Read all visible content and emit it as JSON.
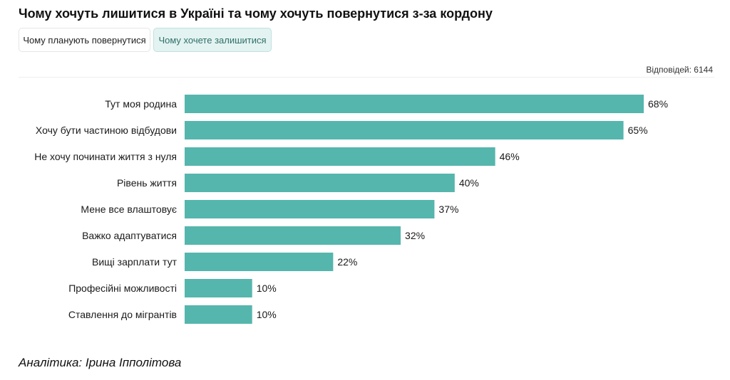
{
  "header": {
    "title": "Чому хочуть лишитися в Україні та чому хочуть повернутися з-за кордону"
  },
  "tabs": [
    {
      "label": "Чому планують повернутися",
      "active": false
    },
    {
      "label": "Чому хочете залишитися",
      "active": true
    }
  ],
  "responses": {
    "label": "Відповідей:",
    "count": "6144"
  },
  "footer": {
    "author": "Аналітика: Ірина Іпполітова"
  },
  "colors": {
    "bar": "#55b6ad",
    "active_tab_bg": "#e3f3f1"
  },
  "chart_data": {
    "type": "bar",
    "orientation": "horizontal",
    "categories": [
      "Тут моя родина",
      "Хочу бути частиною відбудови",
      "Не хочу починати життя з нуля",
      "Рівень життя",
      "Мене все влаштовує",
      "Важко адаптуватися",
      "Вищі зарплати тут",
      "Професійні можливості",
      "Ставлення до мігрантів"
    ],
    "values": [
      68,
      65,
      46,
      40,
      37,
      32,
      22,
      10,
      10
    ],
    "value_labels": [
      "68%",
      "65%",
      "46%",
      "40%",
      "37%",
      "32%",
      "22%",
      "10%",
      "10%"
    ],
    "unit": "%",
    "xlim": [
      0,
      68
    ],
    "grid": false,
    "legend": "none"
  }
}
